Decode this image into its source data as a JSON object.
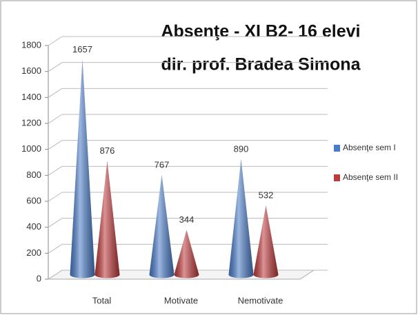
{
  "chart_data": {
    "type": "cone",
    "title": "Absenţe - XI B2- 16 elevi",
    "subtitle": "dir. prof.  Bradea Simona",
    "categories": [
      "Total",
      "Motivate",
      "Nemotivate"
    ],
    "series": [
      {
        "name": "Absenţe sem I",
        "color": "#4a7cc9",
        "values": [
          1657,
          767,
          890
        ]
      },
      {
        "name": "Absenţe sem II",
        "color": "#c0393b",
        "values": [
          876,
          344,
          532
        ]
      }
    ],
    "ylim": [
      0,
      1800
    ],
    "yticks": [
      0,
      200,
      400,
      600,
      800,
      1000,
      1200,
      1400,
      1600,
      1800
    ],
    "grid": true,
    "legend": "right"
  }
}
